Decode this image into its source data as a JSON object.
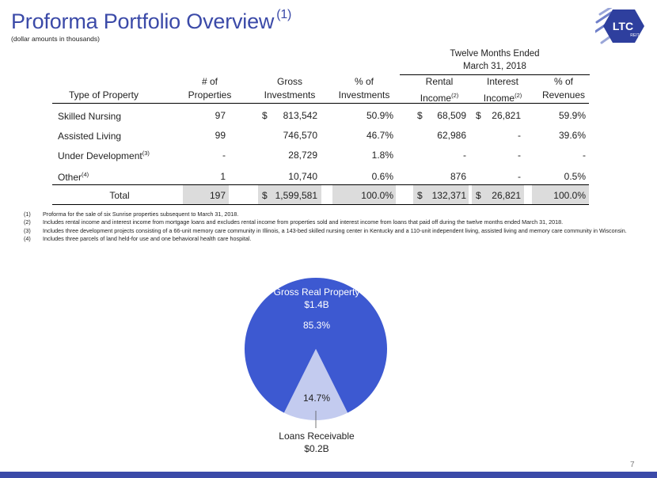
{
  "header": {
    "title": "Proforma Portfolio Overview",
    "title_sup": "(1)",
    "subtitle": "(dollar amounts in thousands)",
    "logo_text": "LTC",
    "logo_subtext": "REIT"
  },
  "table": {
    "period_line1": "Twelve Months Ended",
    "period_line2": "March 31, 2018",
    "headers": {
      "type": "Type of Property",
      "props_1": "# of",
      "props_2": "Properties",
      "gross_1": "Gross",
      "gross_2": "Investments",
      "pct_1": "% of",
      "pct_2": "Investments",
      "rental_1": "Rental",
      "rental_2": "Income",
      "rental_sup": "(2)",
      "interest_1": "Interest",
      "interest_2": "Income",
      "interest_sup": "(2)",
      "rev_1": "% of",
      "rev_2": "Revenues"
    },
    "rows": [
      {
        "type": "Skilled Nursing",
        "type_sup": "",
        "props": "97",
        "gross_cur": "$",
        "gross": "813,542",
        "pct": "50.9%",
        "rental_cur": "$",
        "rental": "68,509",
        "interest_cur": "$",
        "interest": "26,821",
        "rev": "59.9%"
      },
      {
        "type": "Assisted Living",
        "type_sup": "",
        "props": "99",
        "gross_cur": "",
        "gross": "746,570",
        "pct": "46.7%",
        "rental_cur": "",
        "rental": "62,986",
        "interest_cur": "",
        "interest": "-",
        "rev": "39.6%"
      },
      {
        "type": "Under Development",
        "type_sup": "(3)",
        "props": "-",
        "gross_cur": "",
        "gross": "28,729",
        "pct": "1.8%",
        "rental_cur": "",
        "rental": "-",
        "interest_cur": "",
        "interest": "-",
        "rev": "-"
      },
      {
        "type": "Other",
        "type_sup": "(4)",
        "props": "1",
        "gross_cur": "",
        "gross": "10,740",
        "pct": "0.6%",
        "rental_cur": "",
        "rental": "876",
        "interest_cur": "",
        "interest": "-",
        "rev": "0.5%"
      }
    ],
    "total": {
      "type": "Total",
      "props": "197",
      "gross_cur": "$",
      "gross": "1,599,581",
      "pct": "100.0%",
      "rental_cur": "$",
      "rental": "132,371",
      "interest_cur": "$",
      "interest": "26,821",
      "rev": "100.0%"
    }
  },
  "footnotes": [
    {
      "num": "(1)",
      "text": "Proforma for the sale of six Sunrise properties subsequent to March 31, 2018."
    },
    {
      "num": "(2)",
      "text": "Includes rental income and interest income from mortgage loans and excludes rental income from properties sold and interest income from loans that paid off during the twelve months ended March 31, 2018."
    },
    {
      "num": "(3)",
      "text": "Includes three development projects consisting of a 66-unit memory care community in Illinois, a 143-bed skilled nursing center in Kentucky and a 110-unit independent living, assisted living and memory care community in Wisconsin."
    },
    {
      "num": "(4)",
      "text": "Includes three parcels of land held-for use and one behavioral health care hospital."
    }
  ],
  "chart_data": {
    "type": "pie",
    "title": "",
    "slices": [
      {
        "name": "Gross Real Property",
        "amount": "$1.4B",
        "value": 85.3,
        "pct_label": "85.3%",
        "color": "#3d59d1"
      },
      {
        "name": "Loans Receivable",
        "amount": "$0.2B",
        "value": 14.7,
        "pct_label": "14.7%",
        "color": "#c3cbef"
      }
    ]
  },
  "footer": {
    "page_number": "7"
  },
  "colors": {
    "accent": "#3b4aa8",
    "pie_main": "#3d59d1",
    "pie_small": "#c3cbef"
  }
}
